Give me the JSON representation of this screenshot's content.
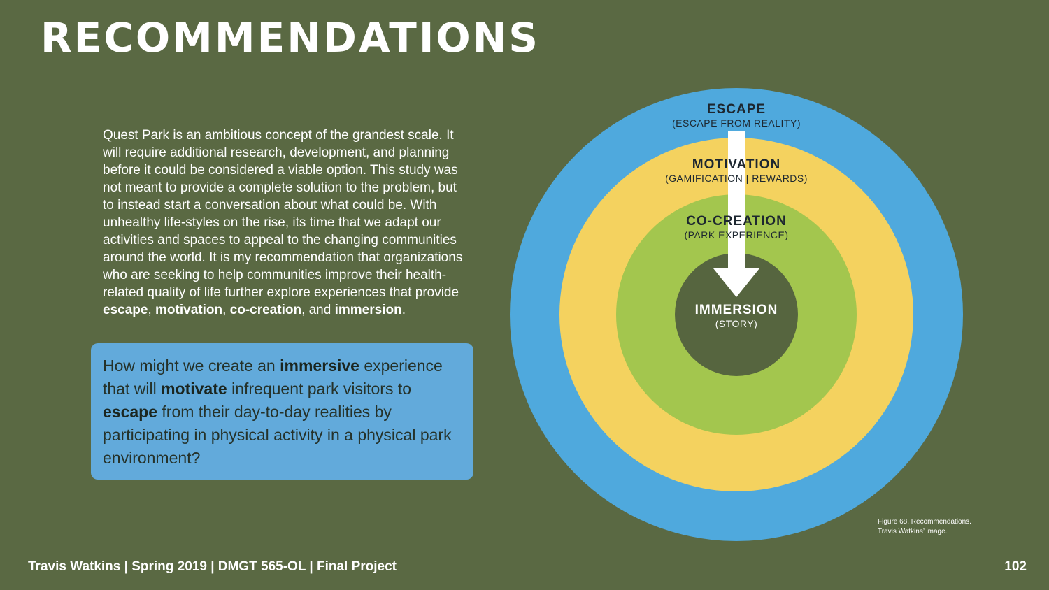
{
  "page": {
    "title": "RECOMMENDATIONS"
  },
  "body": {
    "p1": "Quest Park is an ambitious concept of the grandest scale. It will require additional research, development, and planning before it could be considered a viable option. This study was not meant to provide a complete solution to the problem, but to instead start a conversation about what could be. With unhealthy life-styles on the rise, its time that we adapt our activities and spaces to appeal to the changing communities around the world. It is my recommendation that organizations who are seeking to help communities improve their health-related quality of life further explore experiences that provide ",
    "k1": "escape",
    "s1": ", ",
    "k2": "motivation",
    "s2": ", ",
    "k3": "co-creation",
    "s3": ", and ",
    "k4": "immersion",
    "s4": "."
  },
  "question": {
    "t1": "How might we create an ",
    "b1": "immersive",
    "t2": " experience that will ",
    "b2": "motivate",
    "t3": " infrequent park visitors to ",
    "b3": "escape",
    "t4": " from their day-to-day realities by participating in physical activity in a physical park environment?"
  },
  "diagram": {
    "rings": [
      {
        "name": "ESCAPE",
        "sub": "(ESCAPE FROM REALITY)",
        "color": "#4fa9dd"
      },
      {
        "name": "MOTIVATION",
        "sub": "(GAMIFICATION | REWARDS)",
        "color": "#f4d25f"
      },
      {
        "name": "CO-CREATION",
        "sub": "(PARK EXPERIENCE)",
        "color": "#a3c64e"
      },
      {
        "name": "IMMERSION",
        "sub": "(STORY)",
        "color": "#56653f"
      }
    ],
    "arrow_color": "#ffffff"
  },
  "caption": {
    "line1": "Figure 68. Recommendations.",
    "line2": "Travis Watkins’ image."
  },
  "footer": {
    "left": "Travis Watkins | Spring 2019 | DMGT 565-OL | Final Project",
    "page_number": "102"
  }
}
